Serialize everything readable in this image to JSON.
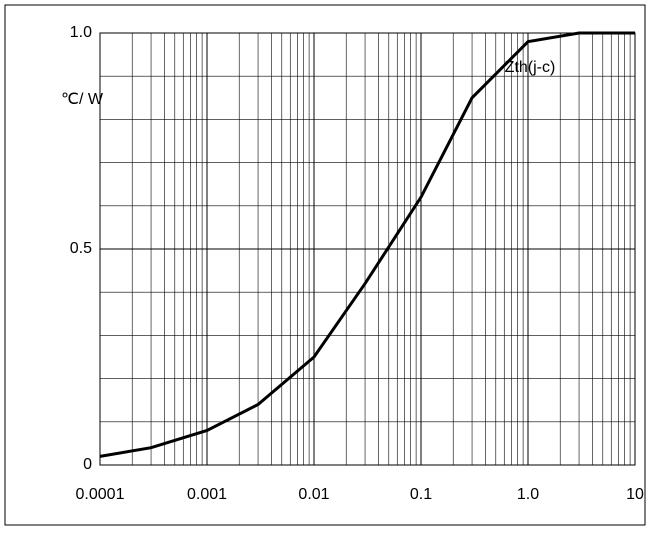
{
  "chart_data": {
    "type": "line",
    "y_label": "℃/ W",
    "annotation": "Zth(j-c)",
    "x": [
      0.0001,
      0.0003,
      0.001,
      0.003,
      0.01,
      0.03,
      0.1,
      0.3,
      1,
      3,
      10
    ],
    "series": [
      {
        "name": "Zth(j-c)",
        "color": "#000000",
        "values": [
          0.02,
          0.04,
          0.08,
          0.14,
          0.25,
          0.42,
          0.62,
          0.85,
          0.98,
          1.0,
          1.0
        ]
      }
    ],
    "xlim": [
      0.0001,
      10
    ],
    "ylim": [
      0,
      1
    ],
    "xticks": [
      0.0001,
      0.001,
      0.01,
      0.1,
      {
        "value": 1,
        "label": "1.0"
      },
      10
    ],
    "yticks": [
      0,
      0.5,
      {
        "value": 1,
        "label": "1.0"
      }
    ],
    "log_x": true,
    "grid": true
  }
}
